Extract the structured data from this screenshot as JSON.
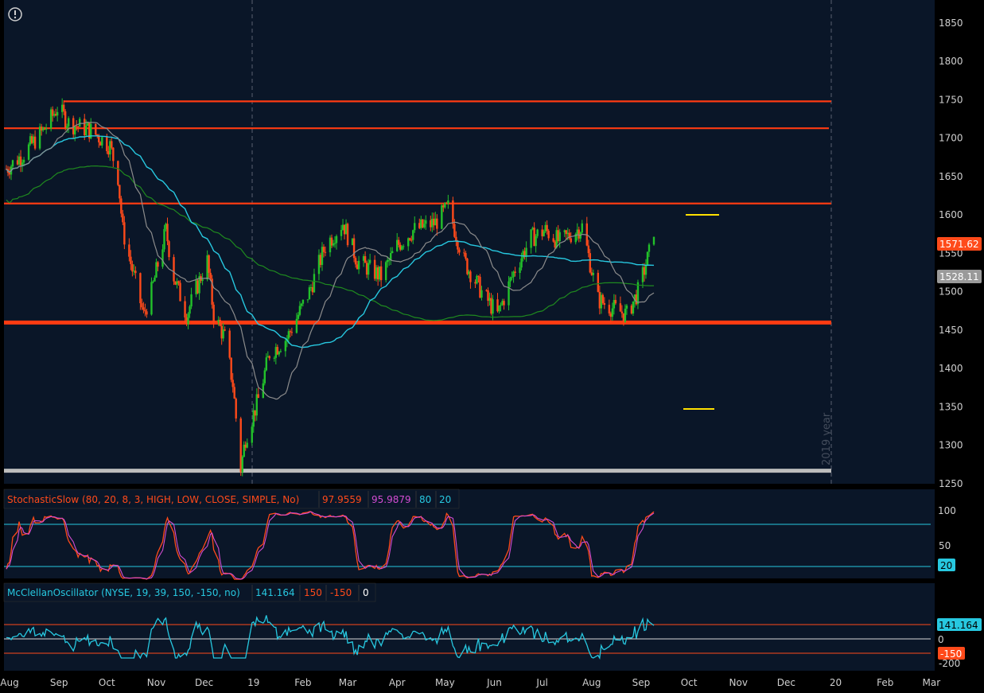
{
  "price_panel": {
    "y_ticks": [
      "1850",
      "1800",
      "1750",
      "1700",
      "1650",
      "1600",
      "1550",
      "1500",
      "1450",
      "1400",
      "1350",
      "1300",
      "1250"
    ],
    "last_price": "1571.62",
    "ma_value": "1528.11",
    "year_watermark": "2019 year",
    "colors": {
      "up": "#22c12a",
      "down": "#ff4a1a",
      "ma_cyan": "#27c8e0",
      "ma_gray": "#8c8c8c",
      "ma_green": "#1f8a1f",
      "hline": "#ff3b12",
      "support": "#ff3b12",
      "baseline": "#bdbdbd",
      "yellow": "#ffe000"
    }
  },
  "stoch_panel": {
    "title": "StochasticSlow (80, 20, 8, 3, HIGH, LOW, CLOSE, SIMPLE, No)",
    "k_value": "97.9559",
    "d_value": "95.9879",
    "overbought": "80",
    "oversold": "20",
    "y_ticks": [
      "100",
      "50"
    ],
    "right_tag": "20"
  },
  "mcclellan_panel": {
    "title": "McClellanOscillator (NYSE, 19, 39, 150, -150, no)",
    "value": "141.164",
    "upper": "150",
    "lower": "-150",
    "zero": "0",
    "y_ticks": [
      "0",
      "-200"
    ],
    "right_tags": [
      "141.164",
      "-150"
    ]
  },
  "x_axis": [
    "Aug",
    "Sep",
    "Oct",
    "Nov",
    "Dec",
    "19",
    "Feb",
    "Mar",
    "Apr",
    "May",
    "Jun",
    "Jul",
    "Aug",
    "Sep",
    "Oct",
    "Nov",
    "Dec",
    "20",
    "Feb",
    "Mar"
  ],
  "chart_data": {
    "type": "candlestick",
    "title": "",
    "xlabel": "",
    "ylabel": "",
    "ylim": [
      1250,
      1880
    ],
    "horizontal_levels": [
      1748,
      1713,
      1615,
      1460
    ],
    "baseline_level": 1267,
    "last_close": 1571.62,
    "close_path": [
      {
        "x": "2018-07-30",
        "close": 1660
      },
      {
        "x": "2018-08-10",
        "close": 1680
      },
      {
        "x": "2018-08-24",
        "close": 1715
      },
      {
        "x": "2018-08-31",
        "close": 1740
      },
      {
        "x": "2018-09-07",
        "close": 1720
      },
      {
        "x": "2018-09-21",
        "close": 1710
      },
      {
        "x": "2018-10-03",
        "close": 1690
      },
      {
        "x": "2018-10-08",
        "close": 1650
      },
      {
        "x": "2018-10-11",
        "close": 1580
      },
      {
        "x": "2018-10-18",
        "close": 1520
      },
      {
        "x": "2018-10-24",
        "close": 1470
      },
      {
        "x": "2018-10-29",
        "close": 1500
      },
      {
        "x": "2018-11-07",
        "close": 1580
      },
      {
        "x": "2018-11-12",
        "close": 1520
      },
      {
        "x": "2018-11-20",
        "close": 1470
      },
      {
        "x": "2018-11-29",
        "close": 1520
      },
      {
        "x": "2018-12-03",
        "close": 1540
      },
      {
        "x": "2018-12-07",
        "close": 1470
      },
      {
        "x": "2018-12-14",
        "close": 1440
      },
      {
        "x": "2018-12-19",
        "close": 1380
      },
      {
        "x": "2018-12-24",
        "close": 1270
      },
      {
        "x": "2018-12-27",
        "close": 1310
      },
      {
        "x": "2019-01-04",
        "close": 1360
      },
      {
        "x": "2019-01-11",
        "close": 1420
      },
      {
        "x": "2019-01-22",
        "close": 1440
      },
      {
        "x": "2019-02-05",
        "close": 1500
      },
      {
        "x": "2019-02-15",
        "close": 1560
      },
      {
        "x": "2019-02-26",
        "close": 1590
      },
      {
        "x": "2019-03-07",
        "close": 1540
      },
      {
        "x": "2019-03-22",
        "close": 1520
      },
      {
        "x": "2019-04-01",
        "close": 1560
      },
      {
        "x": "2019-04-11",
        "close": 1580
      },
      {
        "x": "2019-04-25",
        "close": 1590
      },
      {
        "x": "2019-05-03",
        "close": 1610
      },
      {
        "x": "2019-05-13",
        "close": 1540
      },
      {
        "x": "2019-05-24",
        "close": 1500
      },
      {
        "x": "2019-06-03",
        "close": 1470
      },
      {
        "x": "2019-06-14",
        "close": 1530
      },
      {
        "x": "2019-06-24",
        "close": 1570
      },
      {
        "x": "2019-07-03",
        "close": 1580
      },
      {
        "x": "2019-07-12",
        "close": 1565
      },
      {
        "x": "2019-07-26",
        "close": 1585
      },
      {
        "x": "2019-08-05",
        "close": 1490
      },
      {
        "x": "2019-08-13",
        "close": 1480
      },
      {
        "x": "2019-08-23",
        "close": 1470
      },
      {
        "x": "2019-08-30",
        "close": 1500
      },
      {
        "x": "2019-09-09",
        "close": 1571.62
      }
    ]
  }
}
